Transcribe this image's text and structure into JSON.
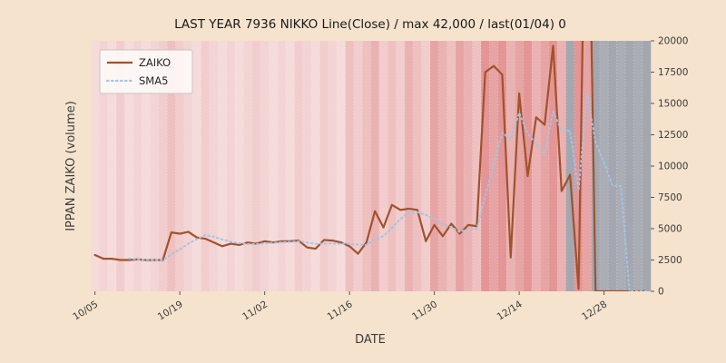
{
  "figure": {
    "background": "#f5e3cd",
    "grayout_color": "#a7a9b1"
  },
  "chart_data": {
    "type": "line",
    "title": "LAST YEAR 7936 NIKKO Line(Close) / max 42,000 / last(01/04) 0",
    "xlabel": "DATE",
    "ylabel": "IPPAN ZAIKO (volume)",
    "ylim": [
      0,
      20000
    ],
    "yticks": [
      0,
      2500,
      5000,
      7500,
      10000,
      12500,
      15000,
      17500,
      20000
    ],
    "xticks": [
      {
        "index": 0,
        "label": "10/05"
      },
      {
        "index": 10,
        "label": "10/19"
      },
      {
        "index": 20,
        "label": "11/02"
      },
      {
        "index": 30,
        "label": "11/16"
      },
      {
        "index": 40,
        "label": "11/30"
      },
      {
        "index": 50,
        "label": "12/14"
      },
      {
        "index": 60,
        "label": "12/28"
      }
    ],
    "n_points": 66,
    "legend_position": "upper left",
    "series": [
      {
        "name": "ZAIKO",
        "color": "#a0522d",
        "style": "solid",
        "values": [
          2900,
          2600,
          2600,
          2500,
          2500,
          2550,
          2500,
          2500,
          2500,
          4700,
          4600,
          4750,
          4300,
          4200,
          3900,
          3600,
          3800,
          3700,
          3900,
          3800,
          4000,
          3900,
          4000,
          4000,
          4050,
          3500,
          3400,
          4100,
          4050,
          3900,
          3600,
          3000,
          3900,
          6400,
          5100,
          6900,
          6500,
          6600,
          6500,
          4000,
          5300,
          4400,
          5400,
          4600,
          5300,
          5200,
          17500,
          18000,
          17300,
          2700,
          15800,
          9200,
          13900,
          13300,
          19600,
          8000,
          9300,
          200,
          42000,
          0,
          0,
          0,
          0,
          0,
          0,
          0
        ]
      },
      {
        "name": "SMA5",
        "color": "#9fc5e8",
        "style": "dotted",
        "values": [
          null,
          null,
          null,
          null,
          2620,
          2550,
          2530,
          2510,
          2510,
          2950,
          3360,
          3810,
          4170,
          4510,
          4350,
          4150,
          3960,
          3840,
          3780,
          3760,
          3840,
          3860,
          3920,
          3940,
          3990,
          3890,
          3790,
          3810,
          3820,
          3790,
          3810,
          3730,
          3690,
          4160,
          4400,
          5060,
          5760,
          6300,
          6320,
          6100,
          5780,
          5360,
          5120,
          4740,
          5000,
          4980,
          7600,
          10120,
          12660,
          12140,
          14260,
          12600,
          11780,
          10980,
          14360,
          12800,
          12820,
          8080,
          15820,
          11900,
          10300,
          8440,
          8400,
          0,
          0,
          0
        ]
      }
    ],
    "background_bands": [
      "#f6dbdb",
      "#f3d4d4",
      "#f6dbdb",
      "#f1cdcd",
      "#f6dbdb",
      "#f3d4d4",
      "#f6dbdb",
      "#f3d4d4",
      "#f1cdcd",
      "#eec0c0",
      "#f1cdcd",
      "#f3d4d4",
      "#f6dbdb",
      "#f1cdcd",
      "#f3d4d4",
      "#f6dbdb",
      "#f3d4d4",
      "#f6dbdb",
      "#f3d4d4",
      "#f1cdcd",
      "#f3d4d4",
      "#f6dbdb",
      "#f3d4d4",
      "#f6dbdb",
      "#f1cdcd",
      "#f3d4d4",
      "#f6dbdb",
      "#f1cdcd",
      "#f3d4d4",
      "#f6dbdb",
      "#eec0c0",
      "#f1cdcd",
      "#eec0c0",
      "#eab2b2",
      "#f1cdcd",
      "#eec0c0",
      "#f1cdcd",
      "#eab2b2",
      "#eec0c0",
      "#f1cdcd",
      "#e7a4a4",
      "#eab2b2",
      "#eec0c0",
      "#e7a4a4",
      "#eab2b2",
      "#eec0c0",
      "#e49595",
      "#e7a4a4",
      "#e49595",
      "#eab2b2",
      "#e7a4a4",
      "#e49595",
      "#eab2b2",
      "#e7a4a4",
      "#e49595",
      "#eab2b2",
      "#a4a7af",
      "#e49595",
      "#e7a4a4",
      "#a4a7af",
      "#abadb5",
      "#a4a7af",
      "#abadb5",
      "#a4a7af",
      "#abadb5",
      "#a4a7af"
    ]
  }
}
